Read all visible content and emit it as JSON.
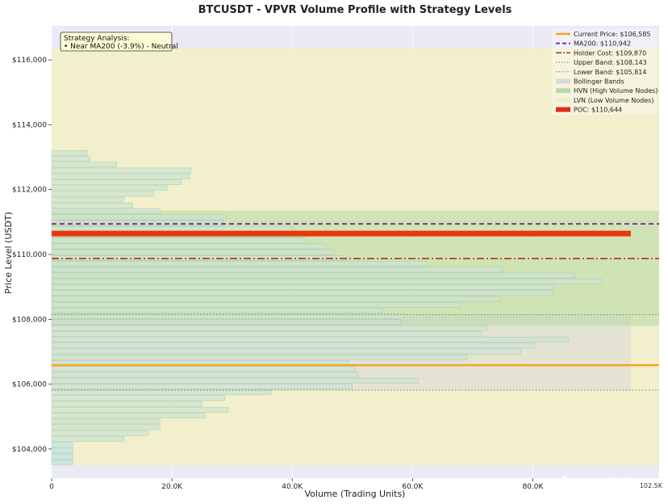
{
  "chart_data": {
    "type": "bar",
    "orientation": "horizontal",
    "title": "BTCUSDT - VPVR Volume Profile with Strategy Levels",
    "xlabel": "Volume (Trading Units)",
    "ylabel": "Price Level (USDT)",
    "xlim": [
      0,
      101000
    ],
    "ylim": [
      103100,
      117050
    ],
    "x_ticks": [
      0,
      20000,
      40000,
      60000,
      80000
    ],
    "x_tick_labels": [
      "0",
      "20.0K",
      "40.0K",
      "60.0K",
      "80.0K"
    ],
    "y_ticks": [
      104000,
      106000,
      108000,
      110000,
      112000,
      114000,
      116000
    ],
    "y_tick_labels": [
      "$104,000",
      "$106,000",
      "$108,000",
      "$110,000",
      "$112,000",
      "$114,000",
      "$116,000"
    ],
    "bins": {
      "price_start": 103500,
      "bin_height": 180,
      "volumes": [
        3500,
        3500,
        3500,
        3500,
        12000,
        16000,
        18000,
        18000,
        25500,
        29300,
        25000,
        28800,
        36500,
        50000,
        61000,
        51000,
        50500,
        49500,
        69000,
        78000,
        80500,
        86000,
        71500,
        72500,
        58000,
        58500,
        55000,
        68000,
        74500,
        83500,
        83500,
        91500,
        87000,
        75000,
        62500,
        49000,
        47000,
        45500,
        42500,
        42000,
        40000,
        28500,
        29000,
        18000,
        13500,
        12000,
        17000,
        19200,
        21600,
        23000,
        23200,
        10800,
        6400,
        6000
      ]
    },
    "levels": {
      "current_price": 106585,
      "ma200": 110942,
      "holder_cost": 109870,
      "upper_band": 108143,
      "lower_band": 105814,
      "poc": 110644
    },
    "regions": {
      "lvn_range": [
        103500,
        116370
      ],
      "hvn_range": [
        107800,
        111350
      ],
      "bollinger_range": [
        105814,
        108143
      ],
      "bollinger_x_max": 96300
    },
    "colors": {
      "bar_fill": "#cfe3d3",
      "bar_edge": "#9cc7a8",
      "bar_low_fill": "#bde3ee",
      "lvn": "#f2f0c4",
      "hvn": "#a9d49a",
      "bollinger": "#d9d9d9",
      "current_price": "#f5a623",
      "ma200": "#7b1fa2",
      "holder_cost": "#b5301e",
      "upper_band": "#6a8a6a",
      "lower_band": "#6a8a6a",
      "poc": "#e8380d",
      "plot_bg": "#e9eaf3"
    },
    "legend": {
      "placement": "top-right",
      "entries": [
        {
          "key": "current",
          "label": "Current Price: $106,585"
        },
        {
          "key": "ma200",
          "label": "MA200: $110,942"
        },
        {
          "key": "holder",
          "label": "Holder Cost: $109,870"
        },
        {
          "key": "upper",
          "label": "Upper Band: $108,143"
        },
        {
          "key": "lower",
          "label": "Lower Band: $105,814"
        },
        {
          "key": "bb",
          "label": "Bollinger Bands"
        },
        {
          "key": "hvn",
          "label": "HVN (High Volume Nodes)"
        },
        {
          "key": "lvn",
          "label": "LVN (Low Volume Nodes)"
        },
        {
          "key": "poc",
          "label": "POC: $110,644"
        }
      ]
    },
    "annotation": {
      "line1": "Strategy Analysis:",
      "line2": "• Near MA200 (-3.9%) - Neutral"
    },
    "right_edge_label": "102.5K",
    "watermark": "@AI 看盘",
    "grid": true
  }
}
